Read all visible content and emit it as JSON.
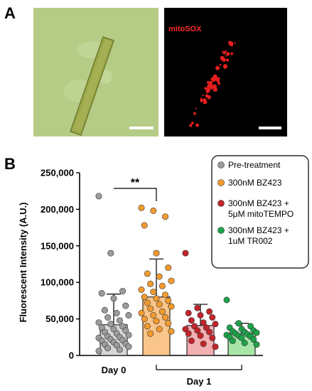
{
  "panel_a": {
    "letter": "A",
    "fluorescence_label": "mitoSOX",
    "colors": {
      "brightfield_bg": "#b5cc86",
      "fluor_bg": "#000000",
      "label": "#ff2a2a",
      "cell": "#9aa84e"
    }
  },
  "panel_b": {
    "letter": "B"
  },
  "chart_data": {
    "type": "bar",
    "title": "",
    "ylabel": "Fluorescent Intensity (A.U.)",
    "ylim": [
      0,
      250000
    ],
    "yticks": [
      0,
      50000,
      100000,
      150000,
      200000,
      250000
    ],
    "ytick_labels": [
      "0",
      "50,000",
      "100,000",
      "150,000",
      "200,000",
      "250,000"
    ],
    "xtick_labels": [
      {
        "text": "Day 0",
        "under_group": 0
      },
      {
        "text": "Day 1",
        "under_groups": [
          1,
          2,
          3
        ]
      }
    ],
    "significance": {
      "label": "**",
      "between": [
        0,
        1
      ]
    },
    "legend_position": "top-right",
    "groups": [
      {
        "name": "Pre-treatment",
        "mean": 42000,
        "sd": 42000,
        "bar_color": "#d7d7d7",
        "point_color": "#9c9c9c",
        "points": [
          218000,
          140000,
          88000,
          85000,
          78000,
          68000,
          62000,
          58000,
          55000,
          52000,
          48000,
          45000,
          43000,
          40000,
          38000,
          36000,
          34000,
          32000,
          30000,
          28000,
          26000,
          25000,
          24000,
          22000,
          21000,
          20000,
          18000,
          16000,
          15000,
          14000,
          12000,
          10000,
          8000,
          6000
        ]
      },
      {
        "name": "300nM BZ423",
        "mean": 80000,
        "sd": 52000,
        "bar_color": "#fac58a",
        "point_color": "#f39b2f",
        "points": [
          202000,
          198000,
          190000,
          178000,
          140000,
          120000,
          112000,
          108000,
          102000,
          98000,
          95000,
          90000,
          87000,
          83000,
          80000,
          78000,
          75000,
          72000,
          70000,
          67000,
          64000,
          60000,
          58000,
          55000,
          52000,
          50000,
          47000,
          44000,
          40000,
          36000,
          33000,
          30000
        ]
      },
      {
        "name": "300nM BZ423 + 5μM mitoTEMPO",
        "mean": 41000,
        "sd": 29000,
        "bar_color": "#f2b0b0",
        "point_color": "#c2242b",
        "points": [
          140000,
          65000,
          60000,
          58000,
          55000,
          52000,
          48000,
          45000,
          43000,
          40000,
          38000,
          36000,
          34000,
          32000,
          30000,
          27000,
          24000,
          20000,
          16000,
          12000
        ]
      },
      {
        "name": "300nM BZ423 + 1uM TR002",
        "mean": 30000,
        "sd": 14000,
        "bar_color": "#a8e6a8",
        "point_color": "#1ea24a",
        "points": [
          76000,
          44000,
          40000,
          38000,
          36000,
          34000,
          33000,
          32000,
          31000,
          30000,
          29000,
          28000,
          27000,
          26000,
          25000,
          24000,
          22000,
          20000,
          17000,
          15000
        ]
      }
    ],
    "legend": [
      {
        "lines": [
          "Pre-treatment"
        ]
      },
      {
        "lines": [
          "300nM BZ423"
        ]
      },
      {
        "lines": [
          "300nM BZ423 +",
          "5μM mitoTEMPO"
        ]
      },
      {
        "lines": [
          "300nM BZ423 +",
          "1uM TR002"
        ]
      }
    ]
  }
}
